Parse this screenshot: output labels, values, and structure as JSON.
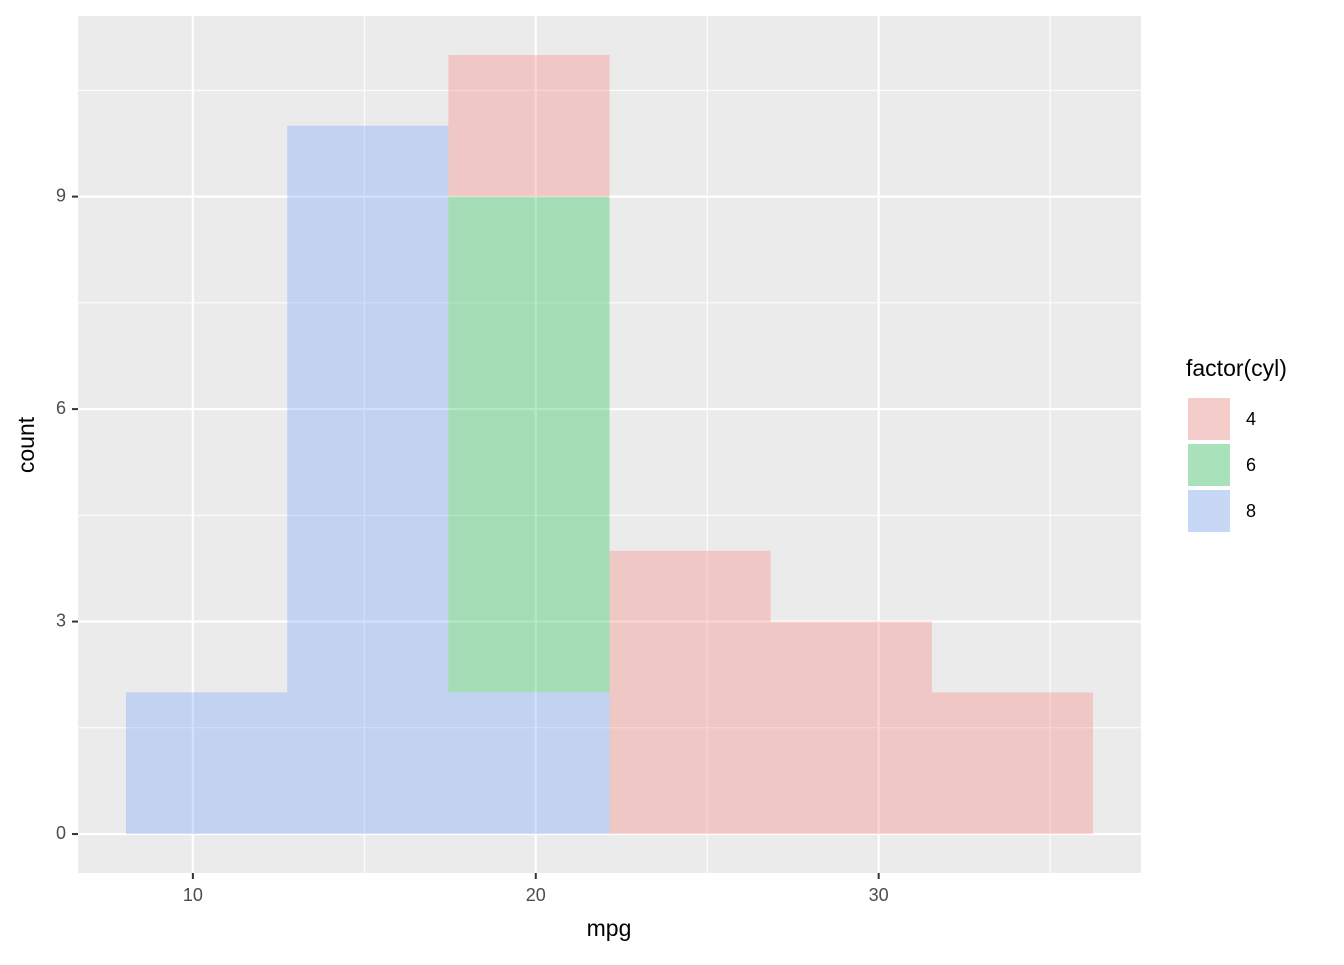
{
  "chart_data": {
    "type": "histogram",
    "x_label": "mpg",
    "y_label": "count",
    "bins": [
      8.05,
      12.75,
      17.45,
      22.15,
      26.85,
      31.55,
      36.25
    ],
    "series": [
      {
        "name": "4",
        "color": "#F8766D",
        "values": [
          0,
          0,
          2,
          4,
          3,
          2
        ]
      },
      {
        "name": "6",
        "color": "#00BA38",
        "values": [
          0,
          0,
          7,
          0,
          0,
          0
        ]
      },
      {
        "name": "8",
        "color": "#619CFF",
        "values": [
          2,
          10,
          2,
          0,
          0,
          0
        ]
      }
    ],
    "stack_order": "last-at-bottom",
    "alpha": 0.3,
    "legend_title": "factor(cyl)",
    "legend": "right",
    "xlim": [
      6.65,
      37.65
    ],
    "xticks": [
      10,
      20,
      30
    ],
    "xminor": [
      15,
      25,
      35
    ],
    "ylim": [
      -0.55,
      11.55
    ],
    "yticks": [
      0,
      3,
      6,
      9
    ],
    "yminor": [
      1.5,
      4.5,
      7.5,
      10.5
    ],
    "grid": true
  }
}
